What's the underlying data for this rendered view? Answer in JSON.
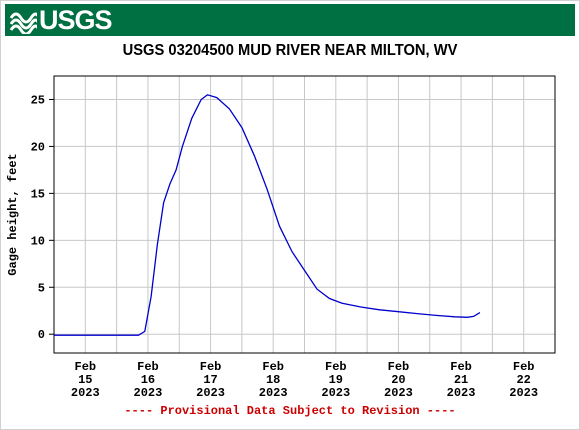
{
  "banner": {
    "logo_text": "USGS",
    "brand_color": "#006f41"
  },
  "footer": {
    "notice": "---- Provisional Data Subject to Revision ----",
    "notice_color": "#cc0000"
  },
  "chart_data": {
    "type": "line",
    "title": "USGS 03204500 MUD RIVER NEAR MILTON, WV",
    "xlabel": "",
    "ylabel": "Gage height, feet",
    "ylim": [
      -2,
      27.5
    ],
    "yticks": [
      0,
      5,
      10,
      15,
      20,
      25
    ],
    "xlim_days": [
      14.5,
      22.5
    ],
    "xticks": [
      {
        "day": 15,
        "line1": "Feb",
        "line2": "15",
        "line3": "2023"
      },
      {
        "day": 16,
        "line1": "Feb",
        "line2": "16",
        "line3": "2023"
      },
      {
        "day": 17,
        "line1": "Feb",
        "line2": "17",
        "line3": "2023"
      },
      {
        "day": 18,
        "line1": "Feb",
        "line2": "18",
        "line3": "2023"
      },
      {
        "day": 19,
        "line1": "Feb",
        "line2": "19",
        "line3": "2023"
      },
      {
        "day": 20,
        "line1": "Feb",
        "line2": "20",
        "line3": "2023"
      },
      {
        "day": 21,
        "line1": "Feb",
        "line2": "21",
        "line3": "2023"
      },
      {
        "day": 22,
        "line1": "Feb",
        "line2": "22",
        "line3": "2023"
      }
    ],
    "grid": true,
    "series": [
      {
        "name": "",
        "color": "#0000cc",
        "points": [
          [
            14.5,
            -0.1
          ],
          [
            15.0,
            -0.1
          ],
          [
            15.5,
            -0.1
          ],
          [
            15.85,
            -0.1
          ],
          [
            15.95,
            0.3
          ],
          [
            16.05,
            4.0
          ],
          [
            16.15,
            9.5
          ],
          [
            16.25,
            14.0
          ],
          [
            16.35,
            16.0
          ],
          [
            16.45,
            17.5
          ],
          [
            16.55,
            20.0
          ],
          [
            16.7,
            23.0
          ],
          [
            16.85,
            25.0
          ],
          [
            16.95,
            25.5
          ],
          [
            17.1,
            25.2
          ],
          [
            17.3,
            24.0
          ],
          [
            17.5,
            22.0
          ],
          [
            17.7,
            19.0
          ],
          [
            17.9,
            15.5
          ],
          [
            18.1,
            11.5
          ],
          [
            18.3,
            8.8
          ],
          [
            18.5,
            6.8
          ],
          [
            18.7,
            4.8
          ],
          [
            18.9,
            3.8
          ],
          [
            19.1,
            3.3
          ],
          [
            19.4,
            2.9
          ],
          [
            19.7,
            2.6
          ],
          [
            20.0,
            2.4
          ],
          [
            20.3,
            2.2
          ],
          [
            20.6,
            2.0
          ],
          [
            20.9,
            1.85
          ],
          [
            21.1,
            1.8
          ],
          [
            21.2,
            1.9
          ],
          [
            21.3,
            2.3
          ]
        ]
      }
    ]
  }
}
